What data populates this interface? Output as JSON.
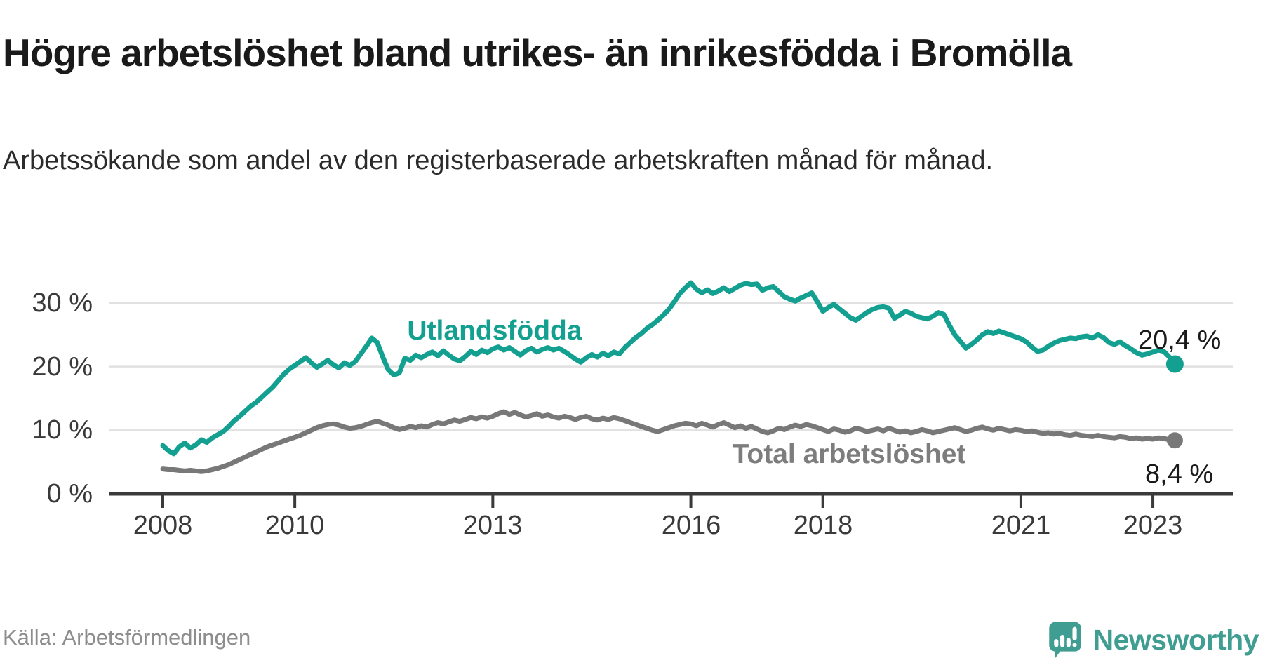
{
  "header": {
    "title": "Högre arbetslöshet bland utrikes- än inrikesfödda i Bromölla",
    "subtitle": "Arbetssökande som andel av den registerbaserade arbetskraften månad för månad."
  },
  "footer": {
    "source": "Källa: Arbetsförmedlingen",
    "brand": "Newsworthy",
    "brand_color": "#409d92",
    "logo_icon": "chart-speech-bubble-icon"
  },
  "chart_data": {
    "type": "line",
    "title": "Högre arbetslöshet bland utrikes- än inrikesfödda i Bromölla",
    "subtitle": "Arbetssökande som andel av den registerbaserade arbetskraften månad för månad.",
    "x_start": "2008-01",
    "x_end": "2023-05",
    "points_per_year": 12,
    "ylim": [
      0,
      35
    ],
    "grid": true,
    "colors": {
      "gridline": "#e1e1e1",
      "axis": "#3a3a3a",
      "tick_label": "#3a3a3a"
    },
    "y_ticks": [
      {
        "label": "30 %",
        "value": 30
      },
      {
        "label": "20 %",
        "value": 20
      },
      {
        "label": "10 %",
        "value": 10
      },
      {
        "label": "0 %",
        "value": 0
      }
    ],
    "x_ticks": [
      {
        "label": "2008",
        "year": 2008
      },
      {
        "label": "2010",
        "year": 2010
      },
      {
        "label": "2013",
        "year": 2013
      },
      {
        "label": "2016",
        "year": 2016
      },
      {
        "label": "2018",
        "year": 2018
      },
      {
        "label": "2021",
        "year": 2021
      },
      {
        "label": "2023",
        "year": 2023
      }
    ],
    "series": [
      {
        "name": "Utlandsfödda",
        "color": "#14a091",
        "end_label": "20,4 %",
        "end_value": 20.4,
        "values": [
          7.6,
          6.8,
          6.3,
          7.4,
          8.0,
          7.2,
          7.7,
          8.5,
          8.1,
          8.8,
          9.3,
          9.8,
          10.6,
          11.5,
          12.2,
          13.0,
          13.8,
          14.4,
          15.2,
          16.0,
          16.8,
          17.8,
          18.8,
          19.6,
          20.2,
          20.8,
          21.4,
          20.6,
          19.9,
          20.4,
          21.0,
          20.3,
          19.8,
          20.6,
          20.2,
          20.8,
          22.0,
          23.2,
          24.5,
          23.8,
          21.5,
          19.5,
          18.7,
          19.0,
          21.3,
          21.0,
          21.8,
          21.4,
          21.9,
          22.3,
          21.7,
          22.5,
          21.8,
          21.2,
          20.9,
          21.6,
          22.4,
          21.9,
          22.6,
          22.2,
          22.8,
          23.1,
          22.6,
          23.0,
          22.4,
          21.8,
          22.5,
          22.9,
          22.3,
          22.7,
          23.0,
          22.6,
          22.9,
          22.4,
          21.8,
          21.2,
          20.7,
          21.4,
          21.9,
          21.5,
          22.1,
          21.7,
          22.3,
          22.0,
          23.0,
          23.8,
          24.6,
          25.2,
          26.0,
          26.6,
          27.3,
          28.1,
          29.0,
          30.2,
          31.5,
          32.4,
          33.2,
          32.2,
          31.6,
          32.1,
          31.5,
          31.9,
          32.4,
          31.8,
          32.3,
          32.8,
          33.1,
          32.9,
          33.0,
          32.0,
          32.4,
          32.6,
          31.8,
          31.0,
          30.6,
          30.3,
          30.8,
          31.2,
          31.6,
          30.2,
          28.7,
          29.3,
          29.8,
          29.1,
          28.4,
          27.7,
          27.3,
          27.9,
          28.5,
          29.0,
          29.3,
          29.4,
          29.2,
          27.6,
          28.1,
          28.7,
          28.4,
          27.9,
          27.7,
          27.5,
          27.9,
          28.5,
          28.2,
          26.5,
          25.0,
          24.0,
          22.9,
          23.5,
          24.2,
          25.0,
          25.5,
          25.2,
          25.6,
          25.3,
          25.0,
          24.7,
          24.4,
          23.9,
          23.1,
          22.4,
          22.6,
          23.2,
          23.7,
          24.1,
          24.3,
          24.5,
          24.4,
          24.7,
          24.8,
          24.5,
          25.0,
          24.6,
          23.8,
          23.5,
          23.9,
          23.3,
          22.8,
          22.2,
          21.8,
          22.0,
          22.3,
          22.6,
          22.4,
          21.5,
          20.4
        ]
      },
      {
        "name": "Total arbetslöshet",
        "color": "#787878",
        "end_label": "8,4 %",
        "end_value": 8.4,
        "values": [
          3.9,
          3.8,
          3.8,
          3.7,
          3.6,
          3.7,
          3.6,
          3.5,
          3.6,
          3.8,
          4.0,
          4.3,
          4.6,
          5.0,
          5.4,
          5.8,
          6.2,
          6.6,
          7.0,
          7.4,
          7.7,
          8.0,
          8.3,
          8.6,
          8.9,
          9.2,
          9.6,
          10.0,
          10.4,
          10.7,
          10.9,
          11.0,
          10.8,
          10.5,
          10.3,
          10.4,
          10.6,
          10.9,
          11.2,
          11.4,
          11.1,
          10.8,
          10.4,
          10.1,
          10.3,
          10.6,
          10.4,
          10.7,
          10.5,
          10.9,
          11.2,
          11.0,
          11.3,
          11.6,
          11.4,
          11.7,
          12.0,
          11.8,
          12.1,
          11.9,
          12.2,
          12.6,
          12.9,
          12.5,
          12.8,
          12.4,
          12.1,
          12.3,
          12.6,
          12.2,
          12.4,
          12.1,
          11.9,
          12.2,
          12.0,
          11.7,
          12.0,
          12.2,
          11.8,
          11.6,
          11.9,
          11.7,
          12.0,
          11.8,
          11.5,
          11.2,
          10.9,
          10.6,
          10.3,
          10.0,
          9.8,
          10.1,
          10.4,
          10.7,
          10.9,
          11.1,
          11.0,
          10.7,
          11.1,
          10.8,
          10.5,
          10.9,
          11.2,
          10.8,
          10.4,
          10.7,
          10.3,
          10.6,
          10.2,
          9.8,
          9.6,
          9.9,
          10.3,
          10.1,
          10.5,
          10.8,
          10.6,
          10.9,
          10.7,
          10.4,
          10.1,
          9.8,
          10.2,
          10.0,
          9.7,
          9.9,
          10.3,
          10.1,
          9.8,
          10.0,
          10.2,
          9.9,
          10.3,
          10.0,
          9.7,
          9.9,
          9.6,
          9.8,
          10.1,
          9.9,
          9.6,
          9.8,
          10.0,
          10.2,
          10.4,
          10.1,
          9.8,
          10.0,
          10.3,
          10.5,
          10.2,
          10.0,
          10.3,
          10.1,
          9.9,
          10.1,
          10.0,
          9.8,
          9.9,
          9.7,
          9.5,
          9.6,
          9.4,
          9.5,
          9.3,
          9.2,
          9.4,
          9.2,
          9.1,
          9.0,
          9.2,
          9.0,
          8.9,
          8.8,
          9.0,
          8.9,
          8.7,
          8.8,
          8.6,
          8.7,
          8.6,
          8.8,
          8.7,
          8.5,
          8.4
        ]
      }
    ]
  }
}
